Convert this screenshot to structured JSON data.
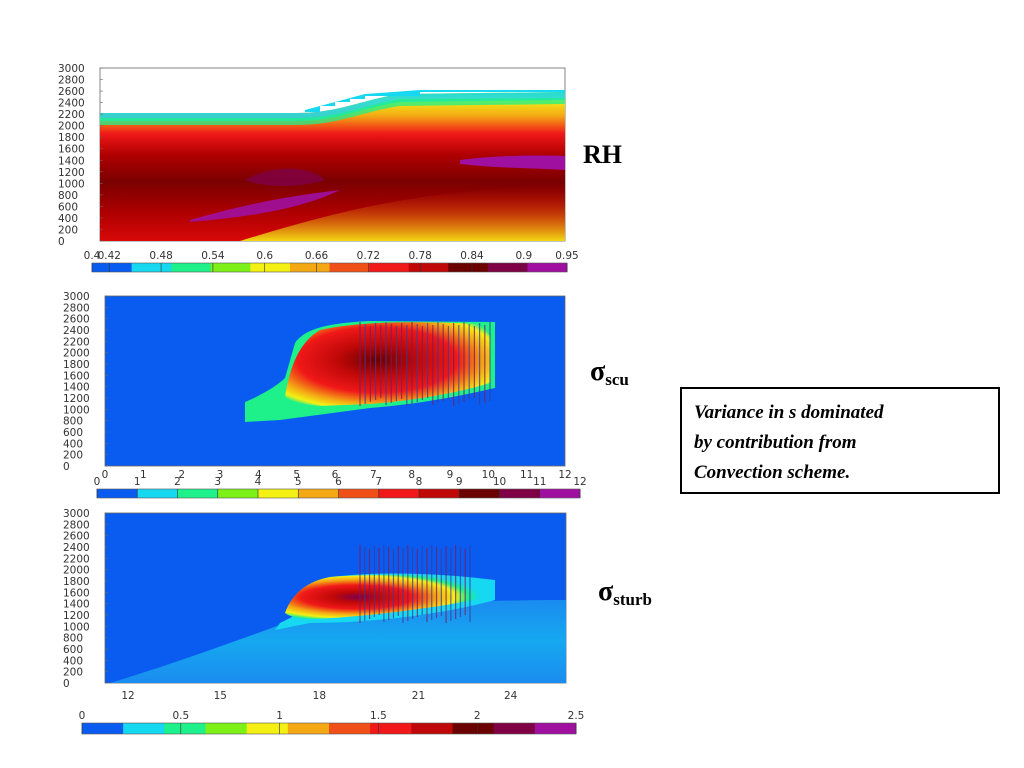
{
  "panel_labels": {
    "rh": "RH",
    "scu": {
      "symbol": "σ",
      "sub": "scu"
    },
    "sturb": {
      "symbol": "σ",
      "sub": "sturb"
    }
  },
  "note_lines": [
    "Variance in s dominated",
    "by contribution from",
    "Convection scheme."
  ],
  "colors": {
    "background_field": "#0a5cf0",
    "colorscale": [
      "#0a5cf0",
      "#16d8f0",
      "#1ef08a",
      "#7df018",
      "#f4f014",
      "#f4a814",
      "#f05018",
      "#f01818",
      "#c00808",
      "#6a0000",
      "#800046",
      "#a010a0"
    ]
  },
  "chart_data": [
    {
      "type": "heatmap",
      "title": "RH",
      "yticks": [
        "3000",
        "2800",
        "2600",
        "2400",
        "2200",
        "2000",
        "1800",
        "1600",
        "1400",
        "1200",
        "1000",
        "800",
        "600",
        "400",
        "200",
        "0"
      ],
      "ylim": [
        0,
        3000
      ],
      "colorbar": {
        "ticks": [
          "0.4",
          "0.42",
          "0.48",
          "0.54",
          "0.6",
          "0.66",
          "0.72",
          "0.78",
          "0.84",
          "0.9",
          "0.95"
        ],
        "range": [
          0.4,
          0.95
        ]
      }
    },
    {
      "type": "heatmap",
      "title": "σscu",
      "yticks": [
        "3000",
        "2800",
        "2600",
        "2400",
        "2200",
        "2000",
        "1800",
        "1600",
        "1400",
        "1200",
        "1000",
        "800",
        "600",
        "400",
        "200",
        "0"
      ],
      "ylim": [
        0,
        3000
      ],
      "colorbar": {
        "ticks": [
          "0",
          "1",
          "2",
          "3",
          "4",
          "5",
          "6",
          "7",
          "8",
          "9",
          "10",
          "11",
          "12"
        ],
        "range": [
          0,
          12
        ]
      }
    },
    {
      "type": "heatmap",
      "title": "σsturb",
      "yticks": [
        "3000",
        "2800",
        "2600",
        "2400",
        "2200",
        "2000",
        "1800",
        "1600",
        "1400",
        "1200",
        "1000",
        "800",
        "600",
        "400",
        "200",
        "0"
      ],
      "ylim": [
        0,
        3000
      ],
      "xticks": [
        "12",
        "15",
        "18",
        "21",
        "24"
      ],
      "colorbar": {
        "ticks": [
          "0",
          "0.5",
          "1",
          "1.5",
          "2",
          "2.5"
        ],
        "range": [
          0,
          2.5
        ]
      }
    }
  ]
}
